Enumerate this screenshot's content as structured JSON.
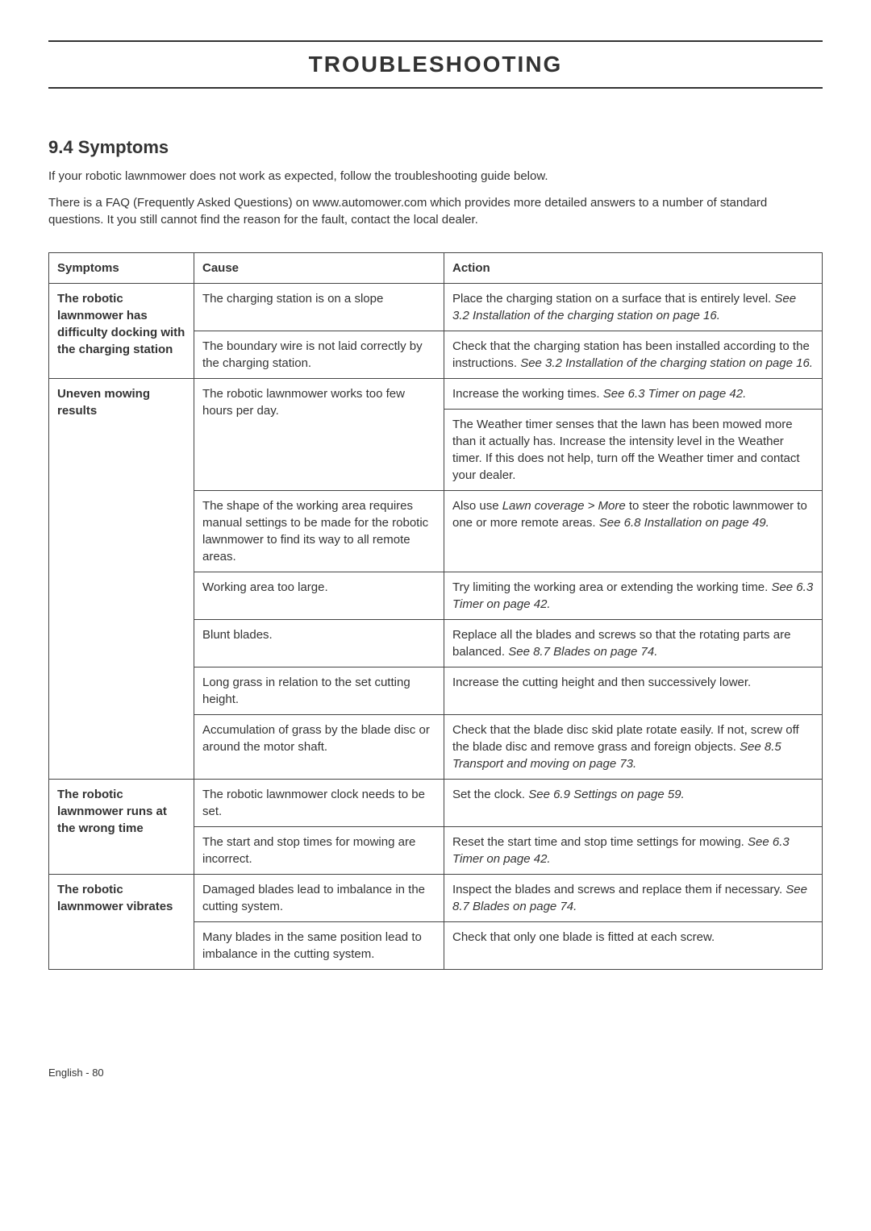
{
  "page_title": "TROUBLESHOOTING",
  "section_heading": "9.4 Symptoms",
  "intro_1": "If your robotic lawnmower does not work as expected, follow the troubleshooting guide below.",
  "intro_2": "There is a FAQ (Frequently Asked Questions) on www.automower.com which provides more detailed answers to a number of standard questions. It you still cannot find the reason for the fault, contact the local dealer.",
  "headers": {
    "symptoms": "Symptoms",
    "cause": "Cause",
    "action": "Action"
  },
  "rows": {
    "r1": {
      "symptom": "The robotic lawnmower has difficulty docking with the charging station",
      "cause": "The charging station is on a slope",
      "action_a": "Place the charging station on a surface that is entirely level. ",
      "action_b": "See 3.2 Installation of the charging station on page 16."
    },
    "r2": {
      "cause": "The boundary wire is not laid correctly by the charging station.",
      "action_a": "Check that the charging station has been installed according to the instructions. ",
      "action_b": "See 3.2 Installation of the charging station on page 16."
    },
    "r3": {
      "symptom": "Uneven mowing results",
      "cause": "The robotic lawnmower works too few hours per day.",
      "action_a": "Increase the working times. ",
      "action_b": "See 6.3 Timer on page 42."
    },
    "r4": {
      "action": "The Weather timer senses that the lawn has been mowed more than it actually has. Increase the intensity level in the Weather timer. If this does not help, turn off the Weather timer and contact your dealer."
    },
    "r5": {
      "cause": "The shape of the working area requires manual settings to be made for the robotic lawnmower to find its way to all remote areas.",
      "action_a": "Also use ",
      "action_b": "Lawn coverage > More",
      "action_c": " to steer the robotic lawnmower to one or more remote areas. ",
      "action_d": "See 6.8 Installation on page 49."
    },
    "r6": {
      "cause": "Working area too large.",
      "action_a": "Try limiting the working area or extending the working time. ",
      "action_b": "See 6.3 Timer on page 42."
    },
    "r7": {
      "cause": "Blunt blades.",
      "action_a": "Replace all the blades and screws so that the rotating parts are balanced. ",
      "action_b": "See 8.7 Blades on page 74."
    },
    "r8": {
      "cause": "Long grass in relation to the set cutting height.",
      "action": "Increase the cutting height and then successively lower."
    },
    "r9": {
      "cause": "Accumulation of grass by the blade disc or around the motor shaft.",
      "action_a": "Check that the blade disc skid plate rotate easily. If not, screw off the blade disc and remove grass and foreign objects. ",
      "action_b": "See 8.5 Transport and moving on page 73."
    },
    "r10": {
      "symptom": "The robotic lawnmower runs at the wrong time",
      "cause": "The robotic lawnmower clock needs to be set.",
      "action_a": "Set the clock. ",
      "action_b": "See 6.9 Settings on page 59."
    },
    "r11": {
      "cause": "The start and stop times for mowing are incorrect.",
      "action_a": "Reset the start time and stop time settings for mowing. ",
      "action_b": "See 6.3 Timer on page 42."
    },
    "r12": {
      "symptom": "The robotic lawnmower vibrates",
      "cause": "Damaged blades lead to imbalance in the cutting system.",
      "action_a": "Inspect the blades and screws and replace them if necessary. ",
      "action_b": "See 8.7 Blades on page 74."
    },
    "r13": {
      "cause": "Many blades in the same position lead to imbalance in the cutting system.",
      "action": "Check that only one blade is fitted at each screw."
    }
  },
  "footer": "English - 80"
}
